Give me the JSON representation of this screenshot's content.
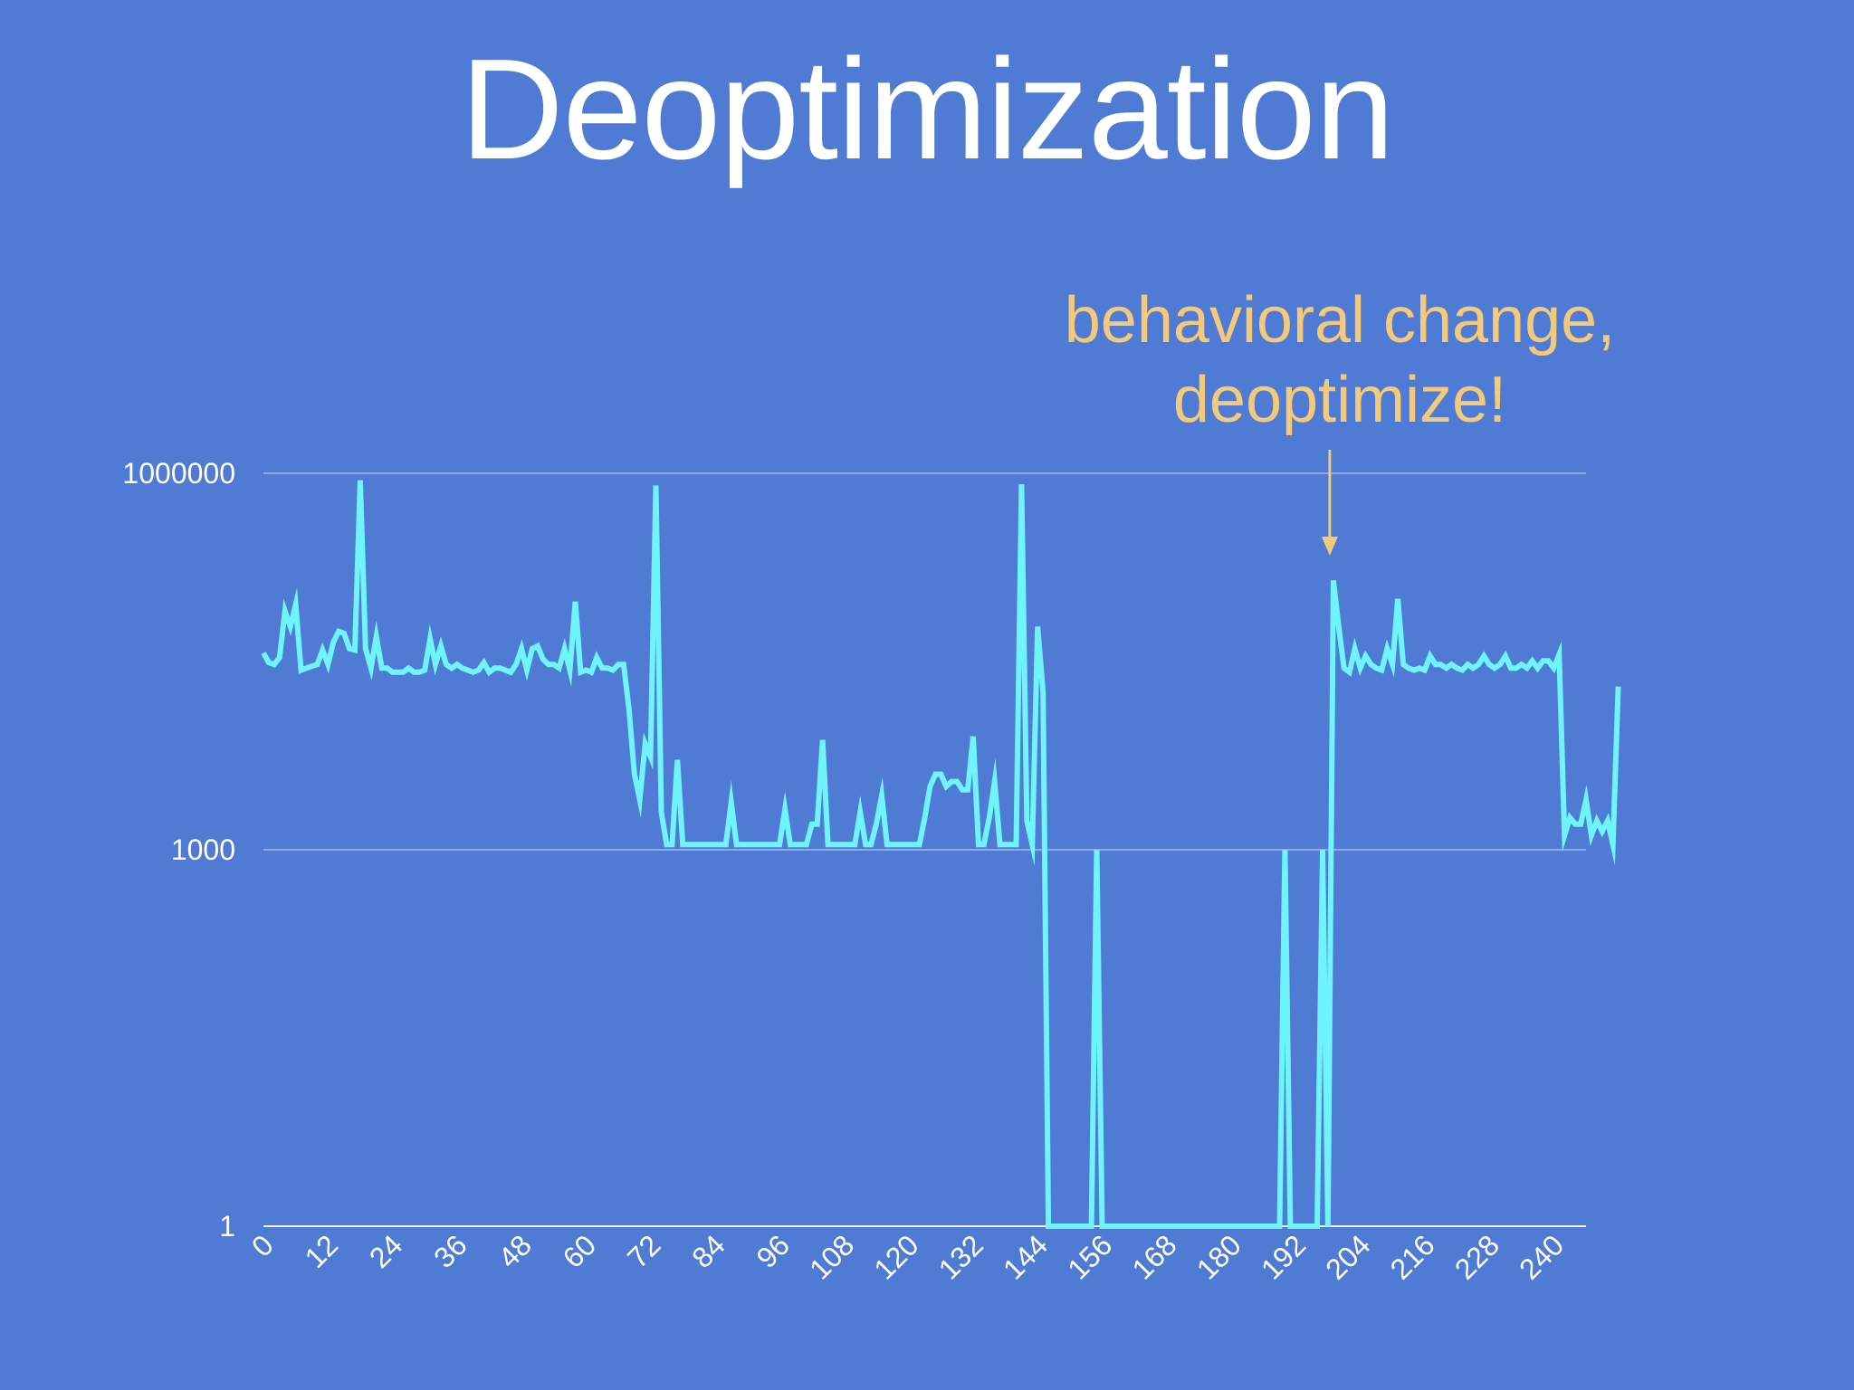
{
  "slide": {
    "title": "Deoptimization",
    "annotation": [
      "behavioral change,",
      "deoptimize!"
    ],
    "colors": {
      "background": "#4f7bd4",
      "series": "#70f4fc",
      "annotation": "#f4c97a",
      "text": "#ffffff",
      "grid": "#b6c9ee"
    }
  },
  "chart_data": {
    "type": "line",
    "title": "",
    "xlabel": "",
    "ylabel": "",
    "yscale": "log",
    "xlim": [
      0,
      246
    ],
    "ylim": [
      1,
      1000000
    ],
    "grid": true,
    "legend": "none",
    "x_ticks": [
      "0",
      "12",
      "24",
      "36",
      "48",
      "60",
      "72",
      "84",
      "96",
      "108",
      "120",
      "132",
      "144",
      "156",
      "168",
      "180",
      "192",
      "204",
      "216",
      "228",
      "240"
    ],
    "y_ticks": [
      "1",
      "1000",
      "1000000"
    ],
    "annotation": {
      "text": "behavioral change, deoptimize!",
      "x": 198
    },
    "series": [
      {
        "values": [
          37000,
          31000,
          30000,
          34000,
          80000,
          60000,
          90000,
          27000,
          28000,
          29000,
          30000,
          39000,
          30000,
          45000,
          55000,
          53000,
          40000,
          39000,
          880000,
          40000,
          28000,
          50000,
          28000,
          28000,
          26000,
          26000,
          26000,
          28000,
          26000,
          26000,
          27000,
          48000,
          30000,
          42000,
          30000,
          28000,
          30000,
          28000,
          27000,
          26000,
          27000,
          31000,
          26000,
          28000,
          28000,
          27000,
          26000,
          30000,
          40000,
          27000,
          40000,
          42000,
          33000,
          30000,
          30000,
          28000,
          40000,
          27000,
          95000,
          26000,
          27000,
          26000,
          34000,
          28000,
          28000,
          27000,
          30000,
          30000,
          13000,
          4000,
          2500,
          7000,
          5500,
          800000,
          2000,
          1100,
          1100,
          5200,
          1100,
          1100,
          1100,
          1100,
          1100,
          1100,
          1100,
          1100,
          1100,
          2400,
          1100,
          1100,
          1100,
          1100,
          1100,
          1100,
          1100,
          1100,
          1100,
          2100,
          1100,
          1100,
          1100,
          1100,
          1600,
          1600,
          7500,
          1100,
          1100,
          1100,
          1100,
          1100,
          1100,
          2000,
          1100,
          1100,
          1600,
          2700,
          1100,
          1100,
          1100,
          1100,
          1100,
          1100,
          1100,
          1800,
          3200,
          4000,
          4000,
          3200,
          3500,
          3500,
          3000,
          3000,
          8000,
          1100,
          1100,
          1800,
          3500,
          1100,
          1100,
          1100,
          1100,
          820000,
          1700,
          1100,
          60000,
          18000,
          1,
          1,
          1,
          1,
          1,
          1,
          1,
          1,
          1,
          1000,
          1,
          1,
          1,
          1,
          1,
          1,
          1,
          1,
          1,
          1,
          1,
          1,
          1,
          1,
          1,
          1,
          1,
          1,
          1,
          1,
          1,
          1,
          1,
          1,
          1,
          1,
          1,
          1,
          1,
          1,
          1,
          1,
          1,
          1,
          1000,
          1,
          1,
          1,
          1,
          1,
          1,
          1000,
          1,
          140000,
          60000,
          28000,
          26000,
          40000,
          28000,
          35000,
          30000,
          28000,
          27000,
          40000,
          30000,
          100000,
          30000,
          28000,
          27000,
          28000,
          27000,
          35000,
          30000,
          30000,
          28000,
          30000,
          28000,
          27000,
          30000,
          28000,
          30000,
          35000,
          30000,
          28000,
          30000,
          35000,
          28000,
          28000,
          30000,
          28000,
          32000,
          28000,
          32000,
          32000,
          28000,
          36000,
          1300,
          1800,
          1600,
          1600,
          2500,
          1300,
          1700,
          1400,
          1700,
          1100,
          20000
        ]
      }
    ]
  }
}
